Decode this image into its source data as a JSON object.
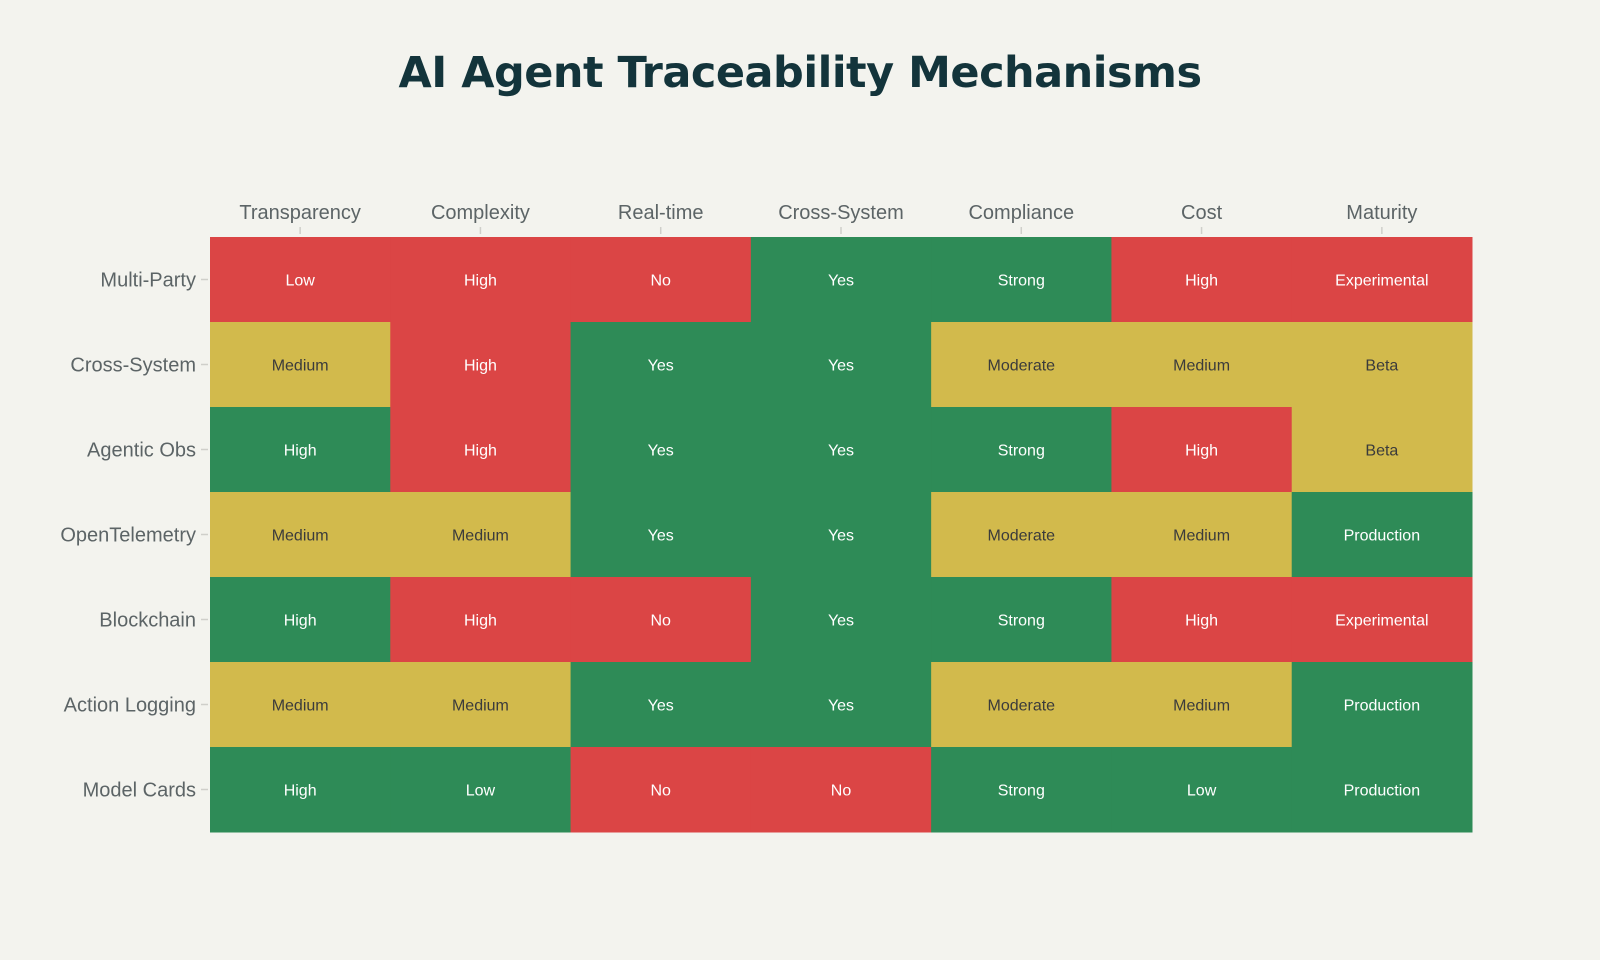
{
  "chart_data": {
    "type": "heatmap",
    "title": "AI Agent Traceability Mechanisms",
    "xlabel": "",
    "ylabel": "",
    "columns": [
      "Transparency",
      "Complexity",
      "Real-time",
      "Cross-System",
      "Compliance",
      "Cost",
      "Maturity"
    ],
    "rows": [
      "Multi-Party",
      "Cross-System",
      "Agentic Obs",
      "OpenTelemetry",
      "Blockchain",
      "Action Logging",
      "Model Cards"
    ],
    "cells": [
      [
        "Low",
        "High",
        "No",
        "Yes",
        "Strong",
        "High",
        "Experimental"
      ],
      [
        "Medium",
        "High",
        "Yes",
        "Yes",
        "Moderate",
        "Medium",
        "Beta"
      ],
      [
        "High",
        "High",
        "Yes",
        "Yes",
        "Strong",
        "High",
        "Beta"
      ],
      [
        "Medium",
        "Medium",
        "Yes",
        "Yes",
        "Moderate",
        "Medium",
        "Production"
      ],
      [
        "High",
        "High",
        "No",
        "Yes",
        "Strong",
        "High",
        "Experimental"
      ],
      [
        "Medium",
        "Medium",
        "Yes",
        "Yes",
        "Moderate",
        "Medium",
        "Production"
      ],
      [
        "High",
        "Low",
        "No",
        "No",
        "Strong",
        "Low",
        "Production"
      ]
    ],
    "scores": [
      [
        0,
        0,
        0,
        2,
        2,
        0,
        0
      ],
      [
        1,
        0,
        2,
        2,
        1,
        1,
        1
      ],
      [
        2,
        0,
        2,
        2,
        2,
        0,
        1
      ],
      [
        1,
        1,
        2,
        2,
        1,
        1,
        2
      ],
      [
        2,
        0,
        0,
        2,
        2,
        0,
        0
      ],
      [
        1,
        1,
        2,
        2,
        1,
        1,
        2
      ],
      [
        2,
        2,
        0,
        0,
        2,
        2,
        2
      ]
    ],
    "colorscale": {
      "0": "#db4545",
      "1": "#d2ba4c",
      "2": "#2e8b57"
    },
    "text_colors": {
      "0": "#ffffff",
      "1": "#3b3b3b",
      "2": "#ffffff"
    },
    "axis_text_color": "#5c6466",
    "title_color": "#13343b",
    "background": "#f3f3ee"
  }
}
